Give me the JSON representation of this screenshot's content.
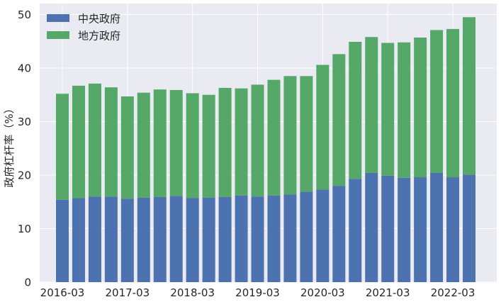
{
  "chart_data": {
    "type": "bar",
    "stacked": true,
    "ylabel": "政府杠杆率（%）",
    "ylim": [
      0,
      50
    ],
    "yticks": [
      0,
      10,
      20,
      30,
      40,
      50
    ],
    "grid": true,
    "legend_position": "top-left",
    "x": [
      "2016-03",
      "2016-06",
      "2016-09",
      "2016-12",
      "2017-03",
      "2017-06",
      "2017-09",
      "2017-12",
      "2018-03",
      "2018-06",
      "2018-09",
      "2018-12",
      "2019-03",
      "2019-06",
      "2019-09",
      "2019-12",
      "2020-03",
      "2020-06",
      "2020-09",
      "2020-12",
      "2021-03",
      "2021-06",
      "2021-09",
      "2021-12",
      "2022-03",
      "2022-06"
    ],
    "xtick_labels": [
      "2016-03",
      "2017-03",
      "2018-03",
      "2019-03",
      "2020-03",
      "2021-03",
      "2022-03"
    ],
    "series": [
      {
        "name": "中央政府",
        "color": "#4c72b0",
        "values": [
          15.4,
          15.7,
          16.0,
          16.0,
          15.6,
          15.8,
          15.9,
          16.1,
          15.7,
          15.8,
          15.9,
          16.2,
          16.0,
          16.2,
          16.4,
          16.9,
          17.3,
          18.0,
          19.3,
          20.4,
          19.9,
          19.5,
          19.6,
          20.4,
          19.6,
          20.1
        ]
      },
      {
        "name": "地方政府",
        "color": "#55a868",
        "values": [
          19.8,
          21.0,
          21.1,
          20.4,
          19.1,
          19.6,
          20.1,
          19.8,
          19.6,
          19.2,
          20.4,
          20.0,
          20.9,
          21.6,
          22.1,
          21.6,
          23.3,
          24.6,
          25.6,
          25.4,
          24.8,
          25.3,
          26.1,
          26.7,
          27.7,
          29.4
        ]
      }
    ]
  }
}
